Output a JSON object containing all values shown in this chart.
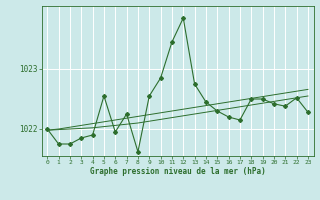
{
  "x": [
    0,
    1,
    2,
    3,
    4,
    5,
    6,
    7,
    8,
    9,
    10,
    11,
    12,
    13,
    14,
    15,
    16,
    17,
    18,
    19,
    20,
    21,
    22,
    23
  ],
  "y_main": [
    1022.0,
    1021.75,
    1021.75,
    1021.85,
    1021.9,
    1022.55,
    1021.95,
    1022.25,
    1021.62,
    1022.55,
    1022.85,
    1023.45,
    1023.85,
    1022.75,
    1022.45,
    1022.3,
    1022.2,
    1022.15,
    1022.5,
    1022.5,
    1022.42,
    1022.38,
    1022.52,
    1022.28
  ],
  "y_trend1": [
    1021.98,
    1021.99,
    1022.0,
    1022.01,
    1022.02,
    1022.04,
    1022.06,
    1022.08,
    1022.1,
    1022.13,
    1022.16,
    1022.19,
    1022.22,
    1022.25,
    1022.28,
    1022.31,
    1022.34,
    1022.37,
    1022.4,
    1022.43,
    1022.46,
    1022.49,
    1022.52,
    1022.55
  ],
  "y_trend2": [
    1021.98,
    1022.0,
    1022.03,
    1022.06,
    1022.09,
    1022.12,
    1022.15,
    1022.18,
    1022.21,
    1022.24,
    1022.27,
    1022.3,
    1022.33,
    1022.36,
    1022.39,
    1022.42,
    1022.45,
    1022.48,
    1022.51,
    1022.54,
    1022.57,
    1022.6,
    1022.63,
    1022.66
  ],
  "line_color": "#2d6e2d",
  "bg_color": "#cce9e9",
  "grid_color": "#ffffff",
  "xlabel": "Graphe pression niveau de la mer (hPa)",
  "ylim": [
    1021.55,
    1024.05
  ],
  "yticks": [
    1022,
    1023
  ],
  "xticks": [
    0,
    1,
    2,
    3,
    4,
    5,
    6,
    7,
    8,
    9,
    10,
    11,
    12,
    13,
    14,
    15,
    16,
    17,
    18,
    19,
    20,
    21,
    22,
    23
  ]
}
